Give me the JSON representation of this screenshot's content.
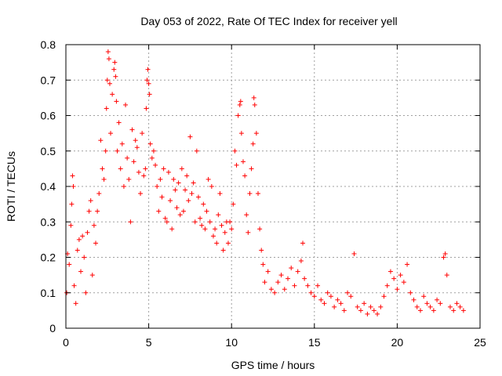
{
  "chart_data": {
    "type": "scatter",
    "title": "Day 053 of 2022, Rate Of TEC Index for receiver yell",
    "xlabel": "GPS time / hours",
    "ylabel": "ROTI / TECUs",
    "xlim": [
      0,
      25
    ],
    "ylim": [
      0,
      0.8
    ],
    "xticks": [
      0,
      5,
      10,
      15,
      20,
      25
    ],
    "xtick_labels": [
      "0",
      "5",
      "10",
      "15",
      "20",
      "25"
    ],
    "yticks": [
      0,
      0.1,
      0.2,
      0.3,
      0.4,
      0.5,
      0.6,
      0.7,
      0.8
    ],
    "ytick_labels": [
      "0",
      "0.1",
      "0.2",
      "0.3",
      "0.4",
      "0.5",
      "0.6",
      "0.7",
      "0.8"
    ],
    "grid": true,
    "marker": "+",
    "marker_color": "#ff0000",
    "series": [
      {
        "name": "ROTI",
        "points": [
          [
            0.05,
            0.1
          ],
          [
            0.1,
            0.21
          ],
          [
            0.2,
            0.18
          ],
          [
            0.3,
            0.29
          ],
          [
            0.35,
            0.35
          ],
          [
            0.4,
            0.43
          ],
          [
            0.45,
            0.4
          ],
          [
            0.5,
            0.12
          ],
          [
            0.6,
            0.07
          ],
          [
            0.7,
            0.22
          ],
          [
            0.8,
            0.25
          ],
          [
            0.9,
            0.16
          ],
          [
            1.0,
            0.26
          ],
          [
            1.1,
            0.2
          ],
          [
            1.2,
            0.1
          ],
          [
            1.3,
            0.27
          ],
          [
            1.4,
            0.33
          ],
          [
            1.5,
            0.36
          ],
          [
            1.6,
            0.15
          ],
          [
            1.7,
            0.29
          ],
          [
            1.8,
            0.24
          ],
          [
            1.9,
            0.33
          ],
          [
            2.0,
            0.38
          ],
          [
            2.1,
            0.53
          ],
          [
            2.2,
            0.45
          ],
          [
            2.3,
            0.42
          ],
          [
            2.4,
            0.5
          ],
          [
            2.45,
            0.62
          ],
          [
            2.5,
            0.7
          ],
          [
            2.55,
            0.78
          ],
          [
            2.6,
            0.76
          ],
          [
            2.65,
            0.69
          ],
          [
            2.7,
            0.55
          ],
          [
            2.8,
            0.66
          ],
          [
            2.9,
            0.73
          ],
          [
            2.95,
            0.75
          ],
          [
            3.0,
            0.71
          ],
          [
            3.05,
            0.64
          ],
          [
            3.1,
            0.5
          ],
          [
            3.2,
            0.58
          ],
          [
            3.3,
            0.45
          ],
          [
            3.4,
            0.52
          ],
          [
            3.5,
            0.4
          ],
          [
            3.6,
            0.63
          ],
          [
            3.7,
            0.48
          ],
          [
            3.8,
            0.42
          ],
          [
            3.9,
            0.3
          ],
          [
            4.0,
            0.56
          ],
          [
            4.1,
            0.47
          ],
          [
            4.2,
            0.53
          ],
          [
            4.3,
            0.51
          ],
          [
            4.4,
            0.44
          ],
          [
            4.5,
            0.38
          ],
          [
            4.6,
            0.55
          ],
          [
            4.7,
            0.43
          ],
          [
            4.8,
            0.45
          ],
          [
            4.85,
            0.62
          ],
          [
            4.9,
            0.7
          ],
          [
            4.95,
            0.73
          ],
          [
            5.0,
            0.69
          ],
          [
            5.05,
            0.66
          ],
          [
            5.1,
            0.52
          ],
          [
            5.2,
            0.48
          ],
          [
            5.3,
            0.5
          ],
          [
            5.4,
            0.46
          ],
          [
            5.5,
            0.4
          ],
          [
            5.6,
            0.33
          ],
          [
            5.7,
            0.42
          ],
          [
            5.8,
            0.37
          ],
          [
            5.9,
            0.45
          ],
          [
            6.0,
            0.31
          ],
          [
            6.1,
            0.3
          ],
          [
            6.2,
            0.44
          ],
          [
            6.3,
            0.36
          ],
          [
            6.4,
            0.28
          ],
          [
            6.5,
            0.42
          ],
          [
            6.6,
            0.39
          ],
          [
            6.7,
            0.34
          ],
          [
            6.8,
            0.41
          ],
          [
            6.9,
            0.32
          ],
          [
            7.0,
            0.45
          ],
          [
            7.1,
            0.33
          ],
          [
            7.2,
            0.39
          ],
          [
            7.3,
            0.43
          ],
          [
            7.4,
            0.36
          ],
          [
            7.5,
            0.54
          ],
          [
            7.6,
            0.38
          ],
          [
            7.7,
            0.41
          ],
          [
            7.8,
            0.3
          ],
          [
            7.9,
            0.5
          ],
          [
            8.0,
            0.37
          ],
          [
            8.1,
            0.31
          ],
          [
            8.2,
            0.29
          ],
          [
            8.3,
            0.35
          ],
          [
            8.4,
            0.28
          ],
          [
            8.5,
            0.33
          ],
          [
            8.6,
            0.42
          ],
          [
            8.7,
            0.3
          ],
          [
            8.8,
            0.4
          ],
          [
            8.9,
            0.26
          ],
          [
            9.0,
            0.28
          ],
          [
            9.1,
            0.24
          ],
          [
            9.2,
            0.32
          ],
          [
            9.3,
            0.38
          ],
          [
            9.4,
            0.29
          ],
          [
            9.5,
            0.22
          ],
          [
            9.6,
            0.27
          ],
          [
            9.7,
            0.3
          ],
          [
            9.8,
            0.24
          ],
          [
            9.9,
            0.3
          ],
          [
            10.0,
            0.28
          ],
          [
            10.1,
            0.35
          ],
          [
            10.2,
            0.5
          ],
          [
            10.3,
            0.46
          ],
          [
            10.4,
            0.6
          ],
          [
            10.5,
            0.63
          ],
          [
            10.55,
            0.64
          ],
          [
            10.6,
            0.55
          ],
          [
            10.7,
            0.47
          ],
          [
            10.8,
            0.43
          ],
          [
            10.9,
            0.32
          ],
          [
            11.0,
            0.27
          ],
          [
            11.1,
            0.38
          ],
          [
            11.2,
            0.45
          ],
          [
            11.3,
            0.52
          ],
          [
            11.35,
            0.65
          ],
          [
            11.4,
            0.63
          ],
          [
            11.5,
            0.55
          ],
          [
            11.6,
            0.38
          ],
          [
            11.7,
            0.28
          ],
          [
            11.8,
            0.22
          ],
          [
            11.9,
            0.18
          ],
          [
            12.0,
            0.13
          ],
          [
            12.2,
            0.16
          ],
          [
            12.4,
            0.11
          ],
          [
            12.6,
            0.1
          ],
          [
            12.8,
            0.13
          ],
          [
            13.0,
            0.15
          ],
          [
            13.2,
            0.11
          ],
          [
            13.4,
            0.14
          ],
          [
            13.6,
            0.17
          ],
          [
            13.8,
            0.12
          ],
          [
            14.0,
            0.16
          ],
          [
            14.2,
            0.19
          ],
          [
            14.3,
            0.24
          ],
          [
            14.4,
            0.14
          ],
          [
            14.6,
            0.12
          ],
          [
            14.8,
            0.1
          ],
          [
            15.0,
            0.09
          ],
          [
            15.2,
            0.12
          ],
          [
            15.4,
            0.08
          ],
          [
            15.6,
            0.07
          ],
          [
            15.8,
            0.1
          ],
          [
            16.0,
            0.09
          ],
          [
            16.2,
            0.06
          ],
          [
            16.4,
            0.08
          ],
          [
            16.6,
            0.07
          ],
          [
            16.8,
            0.05
          ],
          [
            17.0,
            0.1
          ],
          [
            17.2,
            0.09
          ],
          [
            17.4,
            0.21
          ],
          [
            17.6,
            0.06
          ],
          [
            17.8,
            0.05
          ],
          [
            18.0,
            0.07
          ],
          [
            18.2,
            0.04
          ],
          [
            18.4,
            0.06
          ],
          [
            18.6,
            0.05
          ],
          [
            18.8,
            0.04
          ],
          [
            19.0,
            0.06
          ],
          [
            19.2,
            0.09
          ],
          [
            19.4,
            0.12
          ],
          [
            19.6,
            0.16
          ],
          [
            19.8,
            0.14
          ],
          [
            20.0,
            0.11
          ],
          [
            20.2,
            0.15
          ],
          [
            20.4,
            0.13
          ],
          [
            20.6,
            0.18
          ],
          [
            20.8,
            0.1
          ],
          [
            21.0,
            0.08
          ],
          [
            21.2,
            0.06
          ],
          [
            21.4,
            0.05
          ],
          [
            21.6,
            0.09
          ],
          [
            21.8,
            0.07
          ],
          [
            22.0,
            0.06
          ],
          [
            22.2,
            0.05
          ],
          [
            22.4,
            0.08
          ],
          [
            22.6,
            0.07
          ],
          [
            22.8,
            0.2
          ],
          [
            22.9,
            0.21
          ],
          [
            23.0,
            0.15
          ],
          [
            23.2,
            0.06
          ],
          [
            23.4,
            0.05
          ],
          [
            23.6,
            0.07
          ],
          [
            23.8,
            0.06
          ],
          [
            24.0,
            0.05
          ]
        ]
      }
    ]
  }
}
